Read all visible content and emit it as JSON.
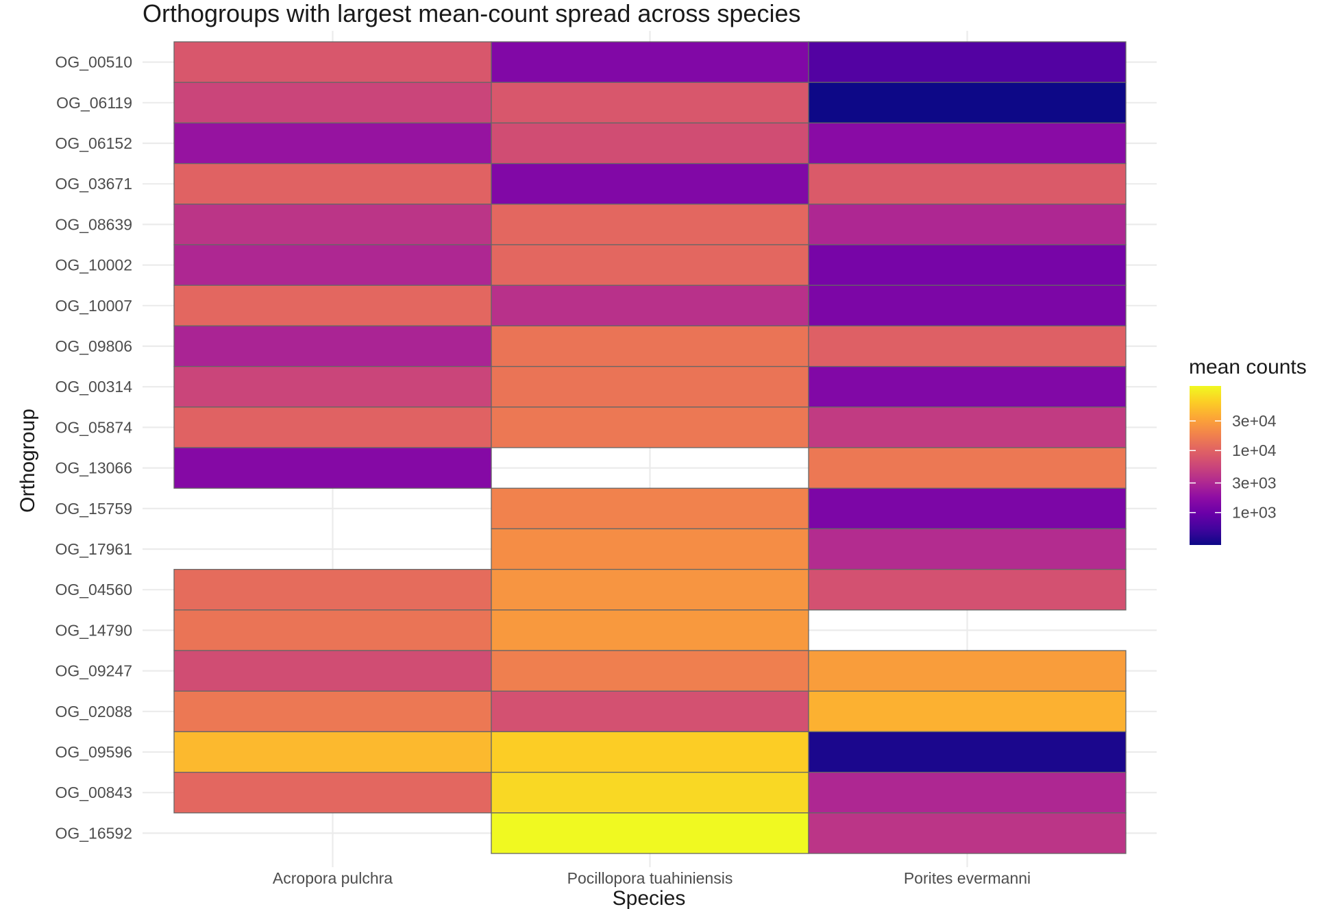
{
  "chart_data": {
    "type": "heatmap",
    "title": "Orthogroups with largest mean-count spread across species",
    "xlabel": "Species",
    "ylabel": "Orthogroup",
    "x_categories": [
      "Acropora pulchra",
      "Pocillopora tuahiniensis",
      "Porites evermanni"
    ],
    "y_categories": [
      "OG_00510",
      "OG_06119",
      "OG_06152",
      "OG_03671",
      "OG_08639",
      "OG_10002",
      "OG_10007",
      "OG_09806",
      "OG_00314",
      "OG_05874",
      "OG_13066",
      "OG_15759",
      "OG_17961",
      "OG_04560",
      "OG_14790",
      "OG_09247",
      "OG_02088",
      "OG_09596",
      "OG_00843",
      "OG_16592"
    ],
    "values": [
      [
        8000,
        1400,
        700
      ],
      [
        5500,
        8000,
        300
      ],
      [
        2000,
        6500,
        1600
      ],
      [
        10000,
        1400,
        8500
      ],
      [
        4000,
        11000,
        3000
      ],
      [
        3000,
        11000,
        1200
      ],
      [
        11000,
        3700,
        1300
      ],
      [
        2800,
        14000,
        9500
      ],
      [
        5500,
        14000,
        1400
      ],
      [
        10000,
        15000,
        4500
      ],
      [
        1500,
        null,
        15000
      ],
      [
        null,
        18000,
        1300
      ],
      [
        null,
        22000,
        3300
      ],
      [
        12000,
        25000,
        7000
      ],
      [
        14000,
        27000,
        null
      ],
      [
        6500,
        17000,
        29000
      ],
      [
        15000,
        7000,
        40000
      ],
      [
        45000,
        60000,
        350
      ],
      [
        11000,
        70000,
        3000
      ],
      [
        null,
        110000,
        4000
      ]
    ],
    "color_scale": {
      "name": "mean counts",
      "transform": "log10",
      "domain": [
        300,
        110000
      ],
      "palette": "plasma",
      "breaks": [
        1000,
        3000,
        10000,
        30000
      ],
      "break_labels": [
        "1e+03",
        "3e+03",
        "1e+04",
        "3e+04"
      ]
    },
    "na_color": "#ffffff",
    "grid": true,
    "legend": "right"
  }
}
